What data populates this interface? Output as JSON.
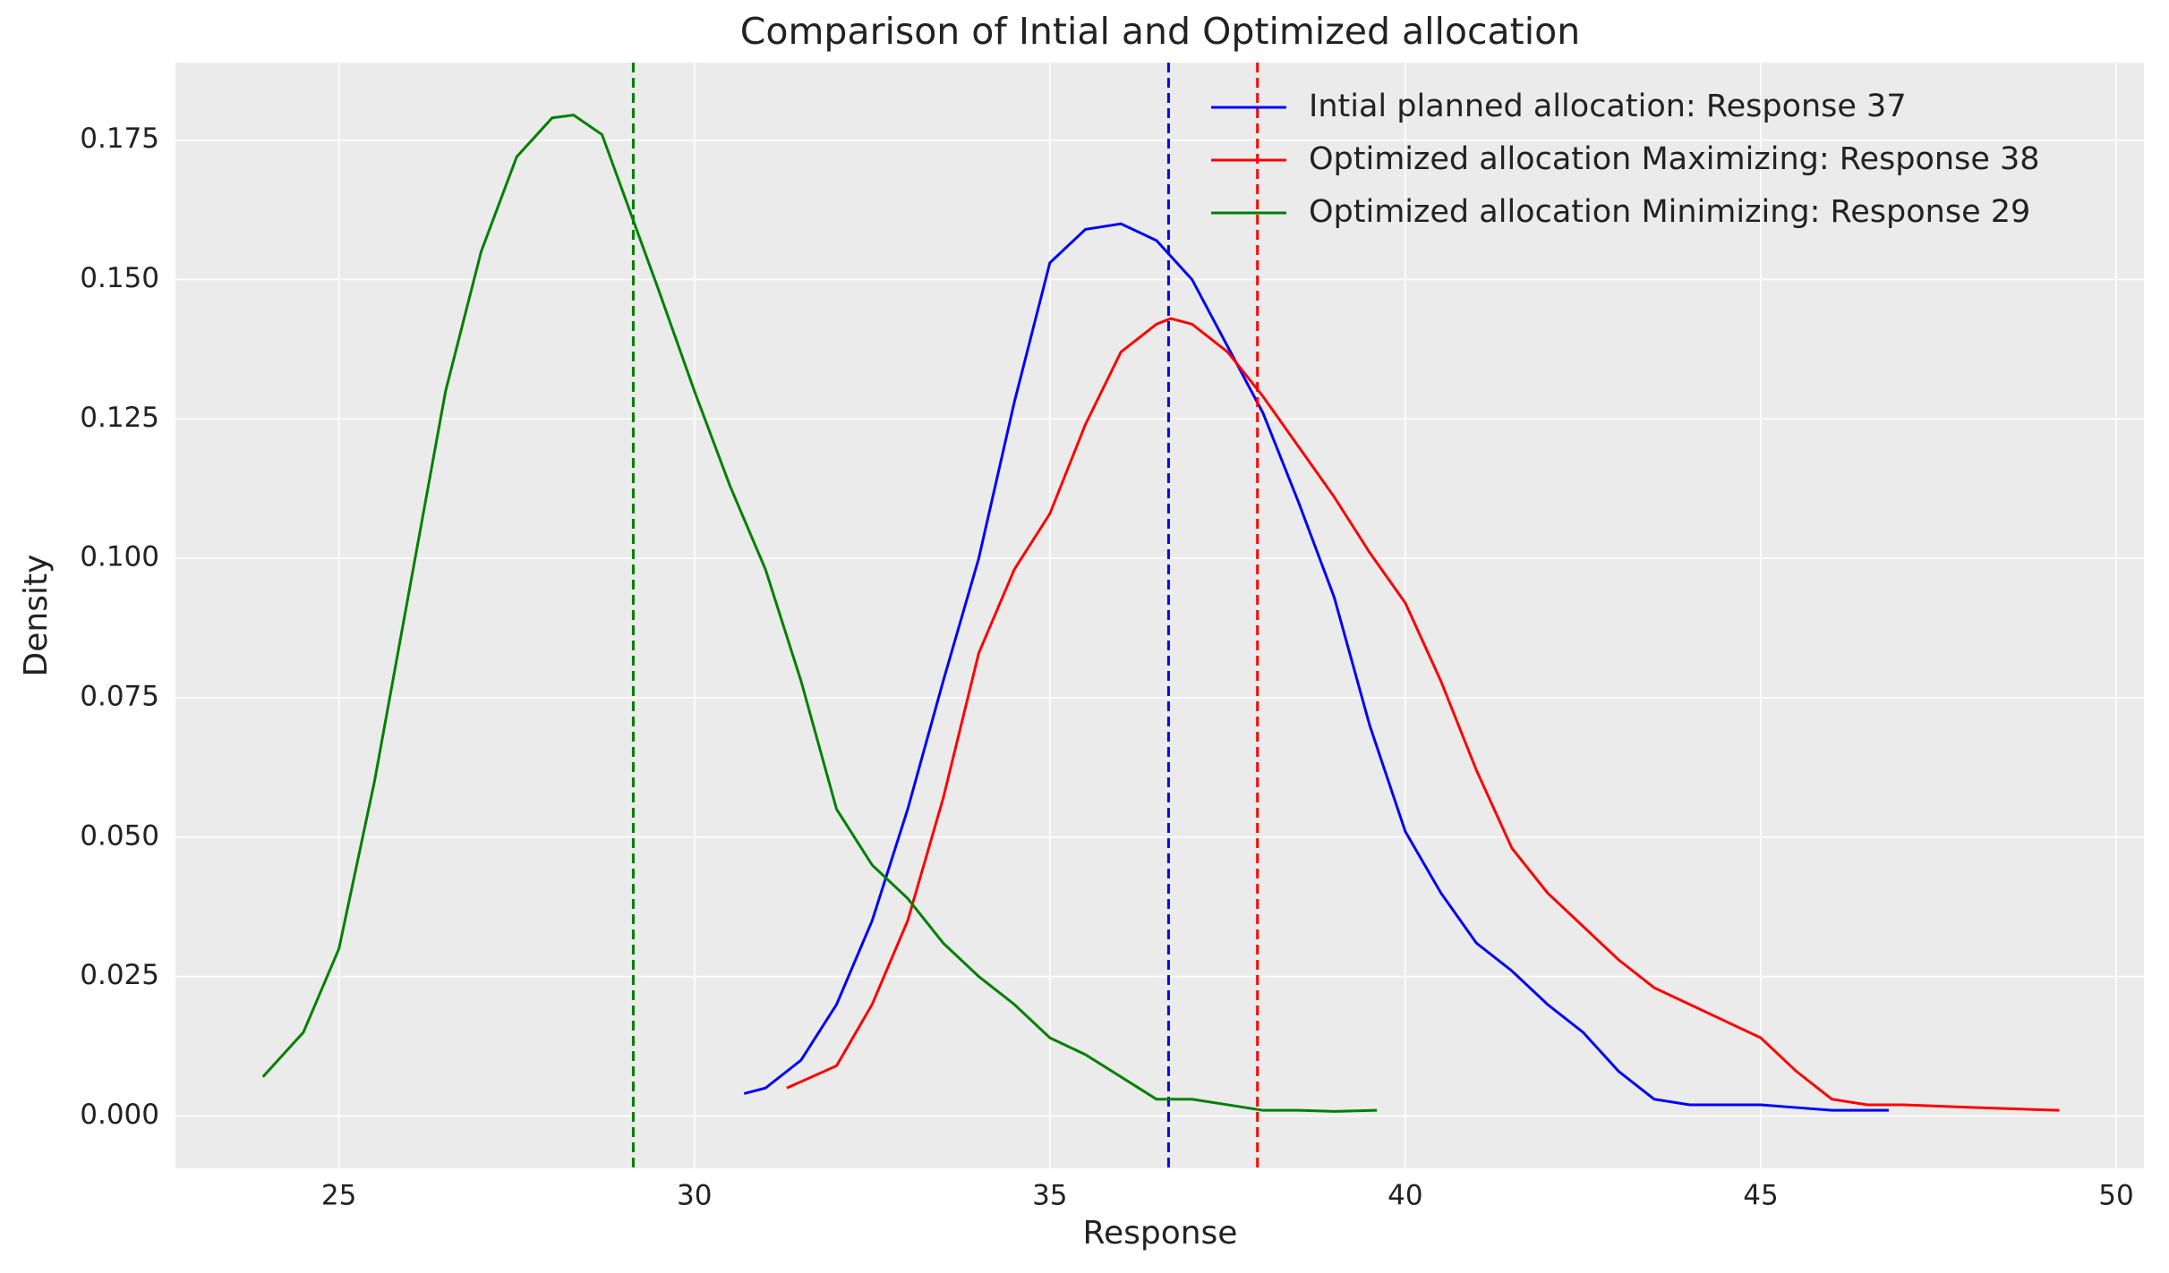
{
  "chart_data": {
    "type": "line",
    "title": "Comparison of Intial and Optimized allocation",
    "x_label": "Response",
    "y_label": "Density",
    "xlim": [
      22.7,
      50.39
    ],
    "ylim": [
      -0.0094,
      0.1889
    ],
    "xticks": [
      25,
      30,
      35,
      40,
      45,
      50
    ],
    "yticks": [
      {
        "value": 0,
        "label": "0.000"
      },
      {
        "value": 0.025,
        "label": "0.025"
      },
      {
        "value": 0.05,
        "label": "0.050"
      },
      {
        "value": 0.075,
        "label": "0.075"
      },
      {
        "value": 0.1,
        "label": "0.100"
      },
      {
        "value": 0.125,
        "label": "0.125"
      },
      {
        "value": 0.15,
        "label": "0.150"
      },
      {
        "value": 0.175,
        "label": "0.175"
      }
    ],
    "grid": true,
    "legend": "upper right",
    "series": [
      {
        "name": "Intial planned allocation: Response 37",
        "color": "#0000ff",
        "mean": 36.67,
        "x": [
          30.7,
          31,
          31.5,
          32,
          32.5,
          33,
          33.5,
          34,
          34.5,
          35,
          35.5,
          36,
          36.5,
          37,
          37.5,
          38,
          38.5,
          39,
          39.5,
          40,
          40.5,
          41,
          41.5,
          42,
          42.5,
          43,
          43.5,
          44,
          45,
          45.5,
          46,
          46.8
        ],
        "values": [
          0.004,
          0.005,
          0.01,
          0.02,
          0.035,
          0.055,
          0.078,
          0.1,
          0.128,
          0.153,
          0.159,
          0.16,
          0.157,
          0.15,
          0.138,
          0.126,
          0.11,
          0.093,
          0.07,
          0.051,
          0.04,
          0.031,
          0.026,
          0.02,
          0.015,
          0.008,
          0.003,
          0.002,
          0.002,
          0.0015,
          0.001,
          0.001
        ]
      },
      {
        "name": "Optimized allocation Maximizing: Response 38",
        "color": "#ff0000",
        "mean": 37.92,
        "x": [
          31.3,
          32,
          32.5,
          33,
          33.5,
          34,
          34.5,
          35,
          35.5,
          36,
          36.5,
          36.7,
          37,
          37.5,
          38,
          38.5,
          39,
          39.5,
          40,
          40.5,
          41,
          41.5,
          42,
          42.5,
          43,
          43.5,
          44,
          44.5,
          45,
          45.5,
          46,
          46.5,
          47,
          48,
          49.2
        ],
        "values": [
          0.005,
          0.009,
          0.02,
          0.035,
          0.057,
          0.083,
          0.098,
          0.108,
          0.124,
          0.137,
          0.142,
          0.143,
          0.142,
          0.137,
          0.129,
          0.12,
          0.111,
          0.101,
          0.092,
          0.078,
          0.062,
          0.048,
          0.04,
          0.034,
          0.028,
          0.023,
          0.02,
          0.017,
          0.014,
          0.008,
          0.003,
          0.002,
          0.002,
          0.0015,
          0.001
        ]
      },
      {
        "name": "Optimized allocation Minimizing: Response 29",
        "color": "#008000",
        "mean": 29.14,
        "x": [
          23.93,
          24.5,
          25,
          25.5,
          26,
          26.5,
          27,
          27.5,
          28,
          28.3,
          28.7,
          29.1,
          29.5,
          30,
          30.5,
          31,
          31.5,
          32,
          32.5,
          33,
          33.5,
          34,
          34.5,
          35,
          35.5,
          36,
          36.5,
          37,
          37.5,
          38,
          38.5,
          39,
          39.6
        ],
        "values": [
          0.007,
          0.015,
          0.03,
          0.06,
          0.095,
          0.13,
          0.155,
          0.172,
          0.179,
          0.1795,
          0.176,
          0.162,
          0.148,
          0.13,
          0.113,
          0.098,
          0.078,
          0.055,
          0.045,
          0.039,
          0.031,
          0.025,
          0.02,
          0.014,
          0.011,
          0.007,
          0.003,
          0.003,
          0.002,
          0.001,
          0.001,
          0.0008,
          0.001
        ]
      }
    ]
  }
}
